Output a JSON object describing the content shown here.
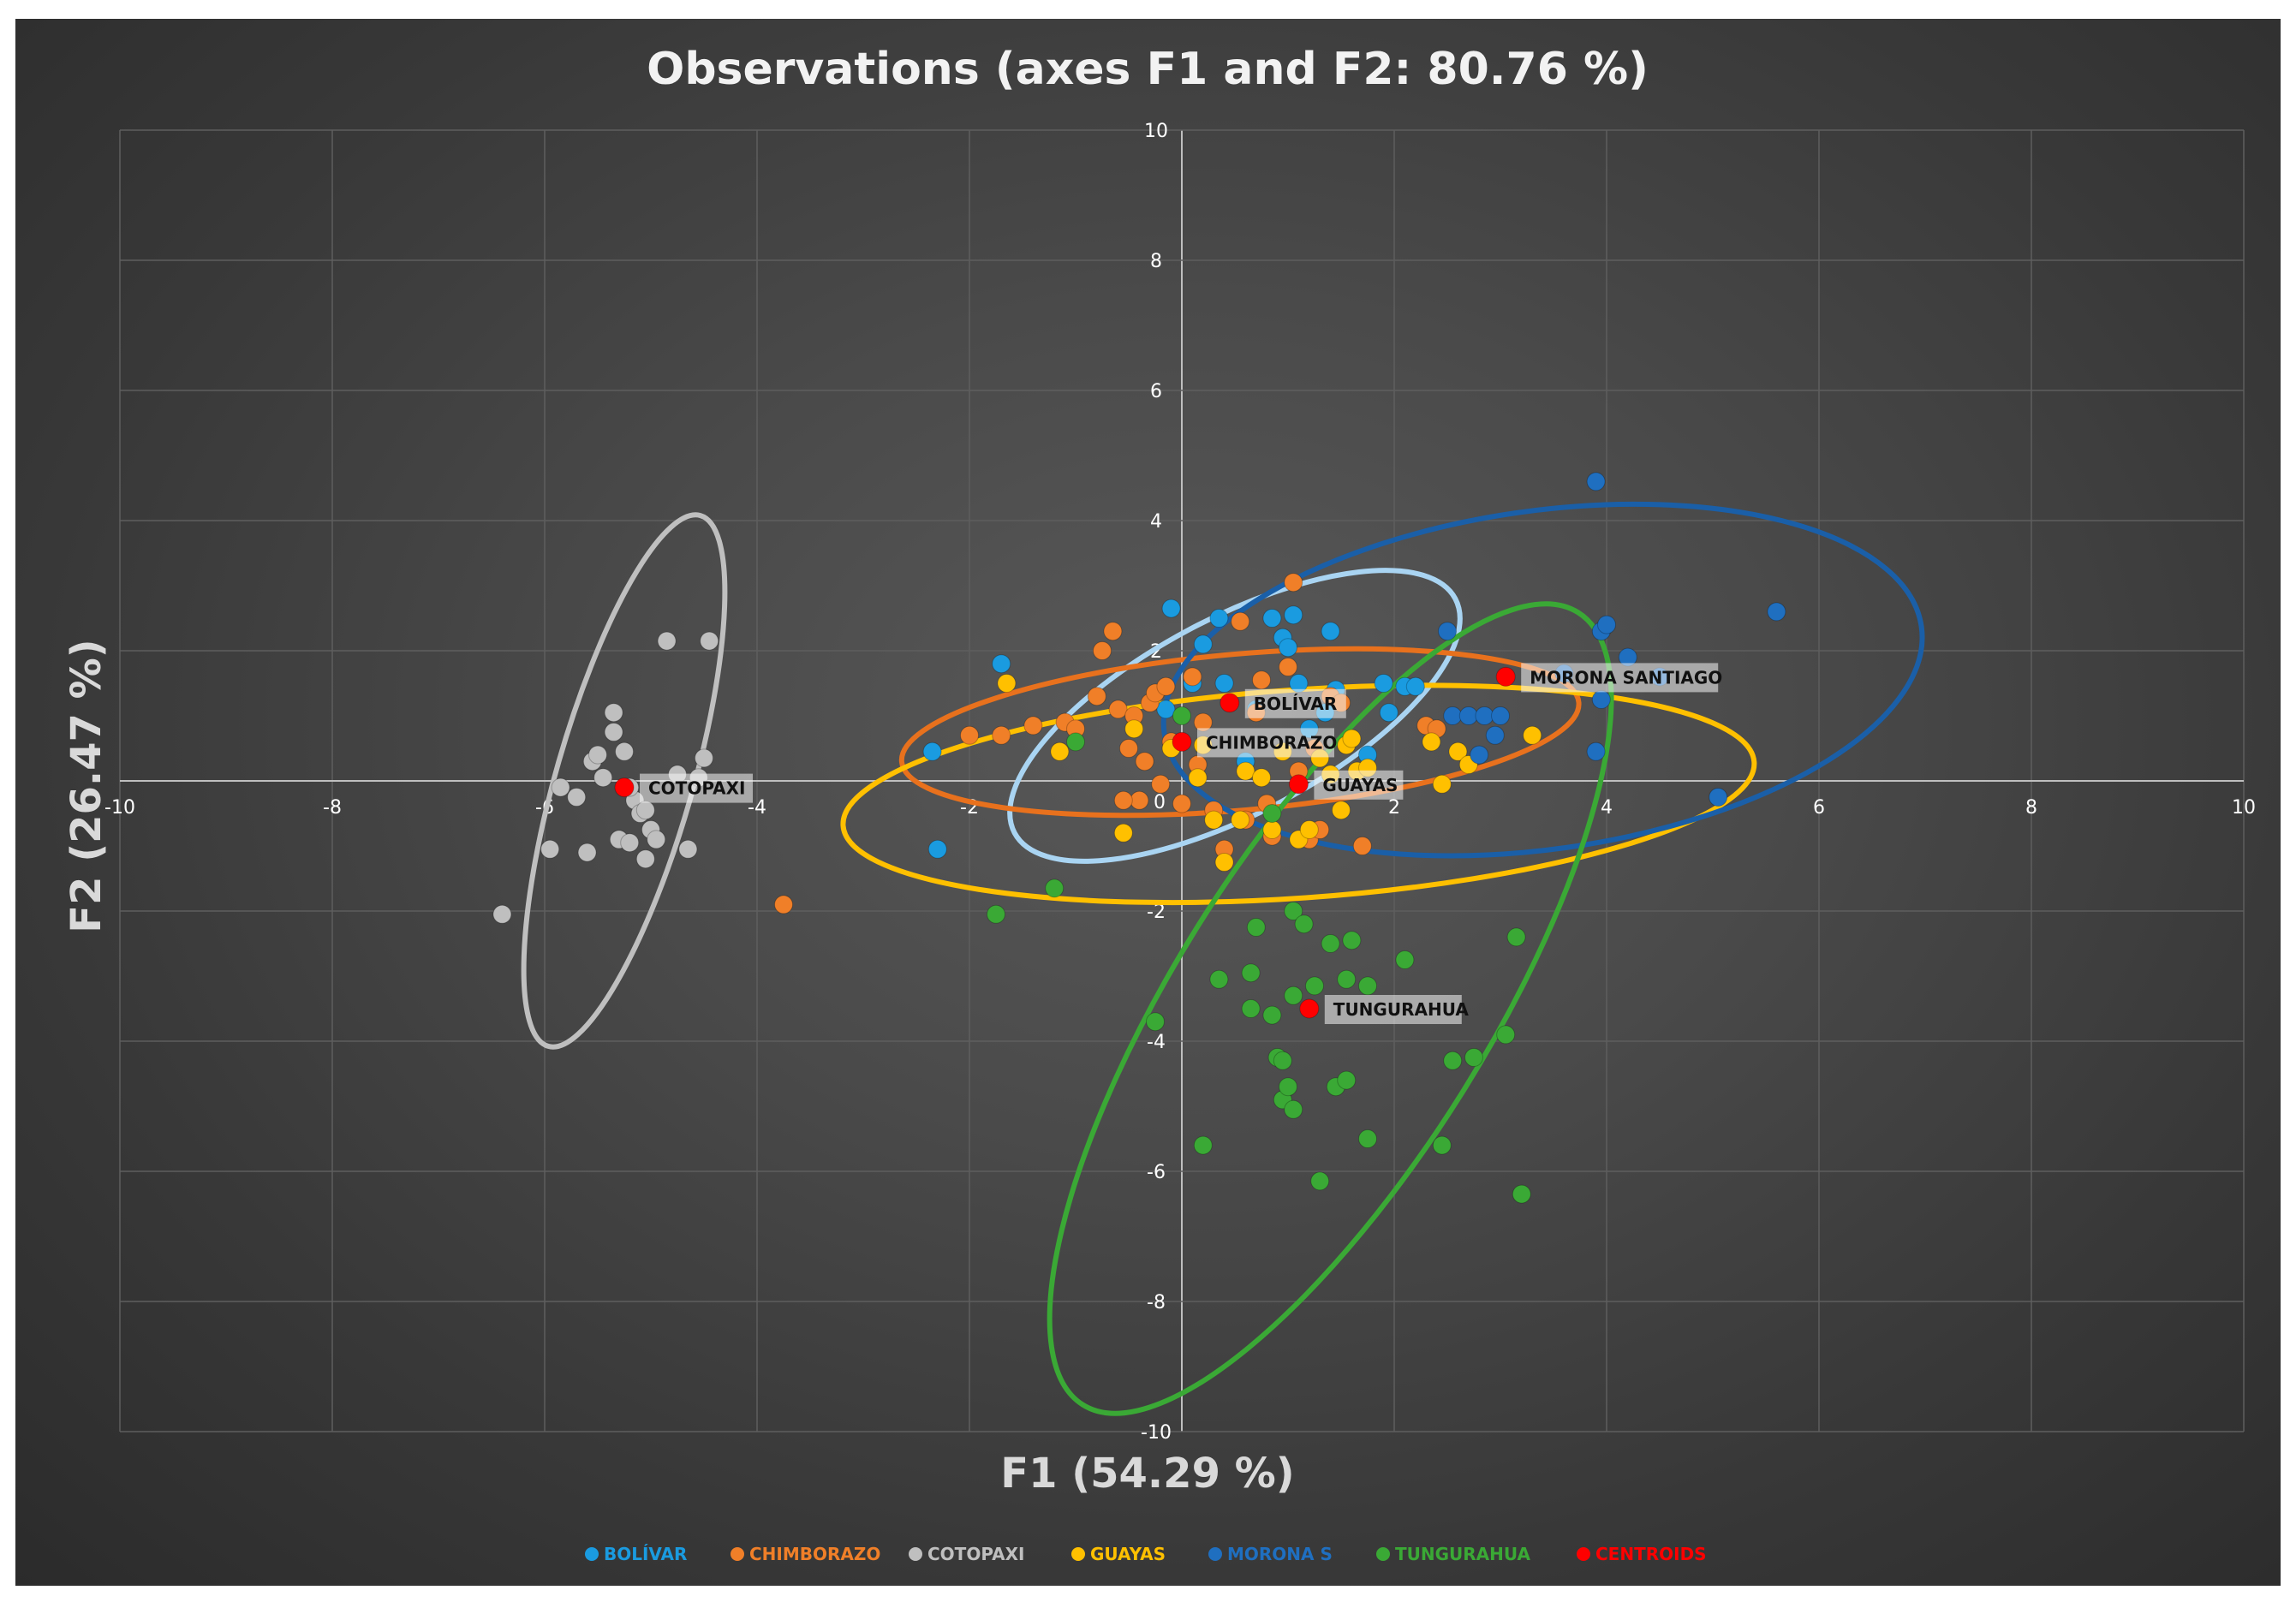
{
  "chart_data": {
    "type": "scatter",
    "title": "Observations (axes F1 and F2: 80.76 %)",
    "xlabel": "F1 (54.29 %)",
    "ylabel": "F2 (26.47 %)",
    "xlim": [
      -10,
      10
    ],
    "ylim": [
      -10,
      10
    ],
    "xticks": [
      -10,
      -8,
      -6,
      -4,
      -2,
      0,
      2,
      4,
      6,
      8,
      10
    ],
    "yticks": [
      -10,
      -8,
      -6,
      -4,
      -2,
      0,
      2,
      4,
      6,
      8,
      10
    ],
    "grid": true,
    "legend_position": "bottom",
    "series": [
      {
        "name": "BOLÍVAR",
        "color": "#1a9be0",
        "points": [
          [
            -2.35,
            0.45
          ],
          [
            -2.3,
            -1.05
          ],
          [
            -1.7,
            1.8
          ],
          [
            -0.15,
            1.1
          ],
          [
            0.1,
            1.5
          ],
          [
            0.2,
            2.1
          ],
          [
            -0.1,
            2.65
          ],
          [
            0.35,
            2.5
          ],
          [
            0.4,
            1.5
          ],
          [
            0.7,
            1.1
          ],
          [
            0.85,
            2.5
          ],
          [
            0.95,
            2.2
          ],
          [
            1.0,
            2.05
          ],
          [
            1.05,
            2.55
          ],
          [
            1.1,
            1.5
          ],
          [
            1.35,
            1.05
          ],
          [
            1.4,
            2.3
          ],
          [
            1.45,
            1.4
          ],
          [
            1.75,
            0.4
          ],
          [
            1.9,
            1.5
          ],
          [
            1.95,
            1.05
          ],
          [
            2.1,
            1.45
          ],
          [
            2.2,
            1.45
          ],
          [
            0.6,
            0.3
          ],
          [
            1.2,
            0.8
          ]
        ]
      },
      {
        "name": "CHIMBORAZO",
        "color": "#f07f28",
        "points": [
          [
            -3.75,
            -1.9
          ],
          [
            -2.0,
            0.7
          ],
          [
            -1.7,
            0.7
          ],
          [
            -1.4,
            0.85
          ],
          [
            -1.1,
            0.9
          ],
          [
            -1.0,
            0.8
          ],
          [
            -0.8,
            1.3
          ],
          [
            -0.75,
            2.0
          ],
          [
            -0.65,
            2.3
          ],
          [
            -0.6,
            1.1
          ],
          [
            -0.5,
            0.5
          ],
          [
            -0.45,
            1.0
          ],
          [
            -0.4,
            -0.3
          ],
          [
            -0.3,
            1.2
          ],
          [
            -0.25,
            1.35
          ],
          [
            -0.2,
            -0.05
          ],
          [
            -0.15,
            1.45
          ],
          [
            -0.1,
            0.6
          ],
          [
            0.0,
            -0.35
          ],
          [
            0.1,
            1.6
          ],
          [
            0.2,
            0.9
          ],
          [
            0.3,
            -0.45
          ],
          [
            0.4,
            -1.05
          ],
          [
            0.55,
            2.45
          ],
          [
            0.6,
            -0.6
          ],
          [
            0.7,
            1.05
          ],
          [
            0.75,
            1.55
          ],
          [
            0.8,
            -0.35
          ],
          [
            0.85,
            -0.85
          ],
          [
            1.0,
            1.75
          ],
          [
            1.05,
            3.05
          ],
          [
            1.1,
            0.15
          ],
          [
            1.2,
            -0.9
          ],
          [
            1.25,
            0.5
          ],
          [
            1.3,
            -0.75
          ],
          [
            1.4,
            1.3
          ],
          [
            1.5,
            1.2
          ],
          [
            1.7,
            -1.0
          ],
          [
            2.3,
            0.85
          ],
          [
            2.4,
            0.8
          ],
          [
            -0.55,
            -0.3
          ],
          [
            -0.35,
            0.3
          ],
          [
            0.15,
            0.25
          ]
        ]
      },
      {
        "name": "COTOPAXI",
        "color": "#bfbfbf",
        "points": [
          [
            -6.4,
            -2.05
          ],
          [
            -5.95,
            -1.05
          ],
          [
            -5.85,
            -0.1
          ],
          [
            -5.7,
            -0.25
          ],
          [
            -5.6,
            -1.1
          ],
          [
            -5.55,
            0.3
          ],
          [
            -5.5,
            0.4
          ],
          [
            -5.45,
            0.05
          ],
          [
            -5.35,
            1.05
          ],
          [
            -5.35,
            0.75
          ],
          [
            -5.3,
            -0.9
          ],
          [
            -5.25,
            0.45
          ],
          [
            -5.2,
            -0.95
          ],
          [
            -5.15,
            -0.3
          ],
          [
            -5.1,
            -0.5
          ],
          [
            -5.05,
            -1.2
          ],
          [
            -5.0,
            -0.75
          ],
          [
            -4.95,
            -0.9
          ],
          [
            -4.85,
            2.15
          ],
          [
            -4.75,
            0.1
          ],
          [
            -4.65,
            -1.05
          ],
          [
            -4.45,
            2.15
          ],
          [
            -4.5,
            0.35
          ],
          [
            -4.55,
            0.05
          ],
          [
            -5.2,
            -0.1
          ],
          [
            -5.05,
            -0.45
          ]
        ]
      },
      {
        "name": "GUAYAS",
        "color": "#ffc000",
        "points": [
          [
            -1.65,
            1.5
          ],
          [
            -1.15,
            0.45
          ],
          [
            -0.55,
            -0.8
          ],
          [
            -0.45,
            0.8
          ],
          [
            -0.1,
            0.5
          ],
          [
            0.15,
            0.05
          ],
          [
            0.3,
            -0.6
          ],
          [
            0.4,
            -1.25
          ],
          [
            0.55,
            -0.6
          ],
          [
            0.6,
            0.15
          ],
          [
            0.75,
            0.05
          ],
          [
            0.85,
            -0.75
          ],
          [
            0.95,
            0.45
          ],
          [
            1.1,
            -0.9
          ],
          [
            1.2,
            -0.75
          ],
          [
            1.3,
            0.35
          ],
          [
            1.4,
            0.1
          ],
          [
            1.5,
            -0.45
          ],
          [
            1.55,
            0.55
          ],
          [
            1.6,
            0.65
          ],
          [
            1.65,
            0.15
          ],
          [
            1.75,
            0.2
          ],
          [
            2.35,
            0.6
          ],
          [
            2.45,
            -0.05
          ],
          [
            2.6,
            0.45
          ],
          [
            2.7,
            0.25
          ],
          [
            3.3,
            0.7
          ],
          [
            0.2,
            0.55
          ]
        ]
      },
      {
        "name": "MORONA S",
        "color": "#1f6fc0",
        "points": [
          [
            2.5,
            2.3
          ],
          [
            2.55,
            1.0
          ],
          [
            2.7,
            1.0
          ],
          [
            2.8,
            0.4
          ],
          [
            2.85,
            1.0
          ],
          [
            2.95,
            0.7
          ],
          [
            3.0,
            1.0
          ],
          [
            3.9,
            4.6
          ],
          [
            3.9,
            0.45
          ],
          [
            3.95,
            2.3
          ],
          [
            4.0,
            2.4
          ],
          [
            4.2,
            1.9
          ],
          [
            4.5,
            1.6
          ],
          [
            5.05,
            -0.25
          ],
          [
            5.6,
            2.6
          ],
          [
            3.95,
            1.25
          ],
          [
            3.6,
            1.65
          ]
        ]
      },
      {
        "name": "TUNGURAHUA",
        "color": "#3aa935",
        "points": [
          [
            -1.75,
            -2.05
          ],
          [
            -1.2,
            -1.65
          ],
          [
            -0.25,
            -3.7
          ],
          [
            0.2,
            -5.6
          ],
          [
            0.35,
            -3.05
          ],
          [
            0.65,
            -2.95
          ],
          [
            0.65,
            -3.5
          ],
          [
            0.7,
            -2.25
          ],
          [
            0.85,
            -3.6
          ],
          [
            0.9,
            -4.25
          ],
          [
            0.95,
            -4.3
          ],
          [
            0.95,
            -4.9
          ],
          [
            1.0,
            -4.7
          ],
          [
            1.05,
            -5.05
          ],
          [
            1.05,
            -3.3
          ],
          [
            1.05,
            -2.0
          ],
          [
            1.15,
            -2.2
          ],
          [
            1.25,
            -3.15
          ],
          [
            1.3,
            -6.15
          ],
          [
            1.4,
            -2.5
          ],
          [
            1.45,
            -4.7
          ],
          [
            1.55,
            -4.6
          ],
          [
            1.55,
            -3.05
          ],
          [
            1.6,
            -2.45
          ],
          [
            1.75,
            -5.5
          ],
          [
            1.75,
            -3.15
          ],
          [
            2.1,
            -2.75
          ],
          [
            2.45,
            -5.6
          ],
          [
            2.55,
            -4.3
          ],
          [
            2.75,
            -4.25
          ],
          [
            3.05,
            -3.9
          ],
          [
            3.15,
            -2.4
          ],
          [
            3.2,
            -6.35
          ],
          [
            0.0,
            1.0
          ],
          [
            -1.0,
            0.6
          ],
          [
            0.85,
            -0.5
          ]
        ]
      },
      {
        "name": "CENTROIDS",
        "color": "#ff0000",
        "points": [
          [
            0.45,
            1.2
          ],
          [
            0.0,
            0.6
          ],
          [
            -5.25,
            -0.1
          ],
          [
            1.1,
            -0.05
          ],
          [
            3.05,
            1.6
          ],
          [
            1.2,
            -3.5
          ]
        ]
      }
    ],
    "centroid_labels": [
      {
        "label": "BOLÍVAR",
        "x": 0.45,
        "y": 1.2
      },
      {
        "label": "CHIMBORAZO",
        "x": 0.0,
        "y": 0.6
      },
      {
        "label": "COTOPAXI",
        "x": -5.25,
        "y": -0.1
      },
      {
        "label": "GUAYAS",
        "x": 1.1,
        "y": -0.05
      },
      {
        "label": "MORONA SANTIAGO",
        "x": 3.05,
        "y": 1.6
      },
      {
        "label": "TUNGURAHUA",
        "x": 1.2,
        "y": -3.5
      }
    ],
    "confidence_ellipses": [
      {
        "group": "BOLÍVAR",
        "color": "#a9d4f2",
        "cx": 0.5,
        "cy": 1.0,
        "rx": 2.35,
        "ry": 1.5,
        "angle": -28
      },
      {
        "group": "CHIMBORAZO",
        "color": "#e8711d",
        "cx": 0.55,
        "cy": 0.75,
        "rx": 3.2,
        "ry": 1.2,
        "angle": -5
      },
      {
        "group": "COTOPAXI",
        "color": "#bfbfbf",
        "cx": -5.25,
        "cy": 0.0,
        "rx": 2.6,
        "ry": 1.05,
        "angle": -74
      },
      {
        "group": "GUAYAS",
        "color": "#ffc000",
        "cx": 1.1,
        "cy": -0.2,
        "rx": 4.3,
        "ry": 1.6,
        "angle": -4
      },
      {
        "group": "MORONA SANTIAGO",
        "color": "#1a5fa8",
        "cx": 3.4,
        "cy": 1.55,
        "rx": 3.6,
        "ry": 2.6,
        "angle": -8
      },
      {
        "group": "TUNGURAHUA",
        "color": "#3aa935",
        "cx": 1.4,
        "cy": -3.5,
        "rx": 4.4,
        "ry": 2.4,
        "angle": -58
      }
    ]
  }
}
